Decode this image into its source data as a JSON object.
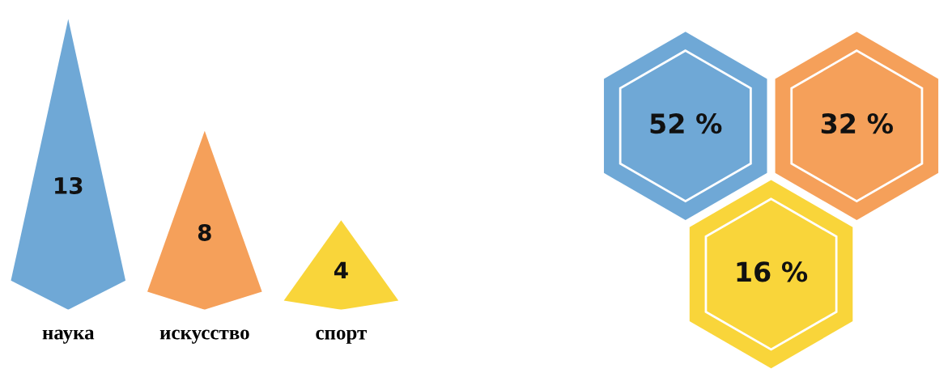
{
  "chart_data": [
    {
      "type": "other",
      "categories": [
        "наука",
        "искусство",
        "спорт"
      ],
      "values": [
        13,
        8,
        4
      ],
      "colors": [
        "#6fa8d6",
        "#f5a05a",
        "#f9d53a"
      ],
      "data_labels": true
    },
    {
      "type": "other",
      "values": [
        52,
        32,
        16
      ],
      "value_labels": [
        "52 %",
        "32 %",
        "16 %"
      ],
      "colors": [
        "#6fa8d6",
        "#f5a05a",
        "#f9d53a"
      ]
    }
  ]
}
